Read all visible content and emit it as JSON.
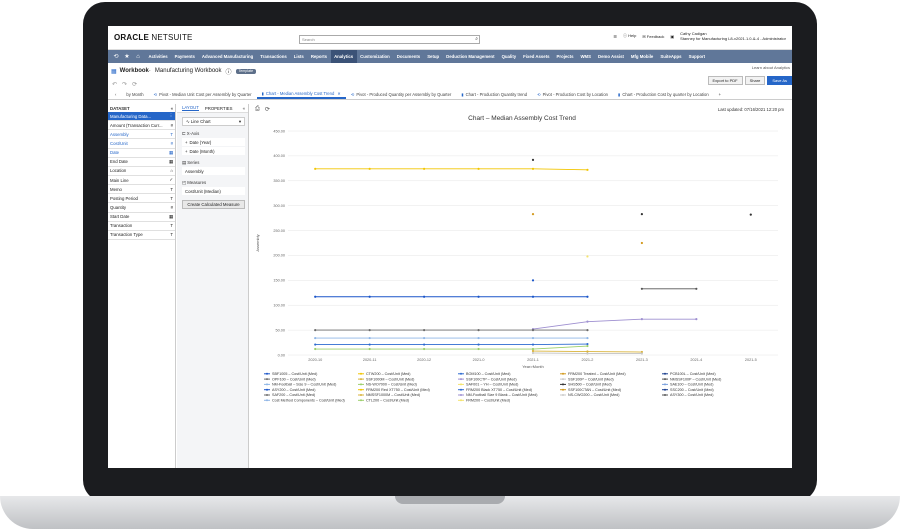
{
  "topbar": {
    "logo_bold": "ORACLE",
    "logo_light": " NETSUITE",
    "search_placeholder": "Search",
    "help": "Help",
    "feedback": "Feedback",
    "user_name": "Cathy Cadigan",
    "user_role": "Stanney for Manufacturing L8-v2021.1.0-&-4 - Administrator"
  },
  "nav": [
    "Activities",
    "Payments",
    "Advanced Manufacturing",
    "Transactions",
    "Lists",
    "Reports",
    "Analytics",
    "Customization",
    "Documents",
    "Setup",
    "Deduction Management",
    "Quality",
    "Fixed Assets",
    "Projects",
    "WMS",
    "Demo Assist",
    "Mfg Mobile",
    "SuiteApps",
    "Support"
  ],
  "nav_active": "Analytics",
  "workbook": {
    "label": "Workbook",
    "name": "Manufacturing Workbook",
    "tag": "Template",
    "learn": "Learn about Analytics",
    "export": "Export to PDF",
    "share": "Share",
    "save_as": "Save As"
  },
  "tabs": [
    {
      "label": "by Month",
      "active": false
    },
    {
      "label": "Pivot - Median Unit Cost per Assembly by Quarter",
      "active": false
    },
    {
      "label": "Chart - Median Assembly Cost Trend",
      "active": true
    },
    {
      "label": "Pivot - Produced Quantity per Assembly by Quarter",
      "active": false
    },
    {
      "label": "Chart - Production Quantity trend",
      "active": false
    },
    {
      "label": "Pivot - Production Cost by Location",
      "active": false
    },
    {
      "label": "Chart - Production Cost by quarter by Location",
      "active": false
    }
  ],
  "dataset": {
    "header": "DATASET",
    "fields": [
      {
        "label": "Manufacturing Data...",
        "type": "⋮",
        "state": "selected"
      },
      {
        "label": "Amount (Transaction Curr...",
        "type": "#",
        "state": ""
      },
      {
        "label": "Assembly",
        "type": "T",
        "state": "blue"
      },
      {
        "label": "Cost/Unit",
        "type": "#",
        "state": "blue"
      },
      {
        "label": "Date",
        "type": "▦",
        "state": "blue"
      },
      {
        "label": "End Date",
        "type": "▦",
        "state": ""
      },
      {
        "label": "Location",
        "type": "⌂",
        "state": ""
      },
      {
        "label": "Main Line",
        "type": "✓",
        "state": ""
      },
      {
        "label": "Memo",
        "type": "T",
        "state": ""
      },
      {
        "label": "Posting Period",
        "type": "T",
        "state": ""
      },
      {
        "label": "Quantity",
        "type": "#",
        "state": ""
      },
      {
        "label": "Start Date",
        "type": "▦",
        "state": ""
      },
      {
        "label": "Transaction",
        "type": "T",
        "state": ""
      },
      {
        "label": "Transaction Type",
        "type": "T",
        "state": ""
      }
    ]
  },
  "layout": {
    "tab_layout": "LAYOUT",
    "tab_properties": "PROPERTIES",
    "chart_type": "Line Chart",
    "xaxis_label": "X-Axis",
    "xaxis_items": [
      "Date (Year)",
      "Date (Month)"
    ],
    "series_label": "Series",
    "series_item": "Assembly",
    "measures_label": "Measures",
    "measures_item": "Cost/Unit (Median)",
    "create_btn": "Create Calculated Measure"
  },
  "last_updated": "Last updated: 07/16/2021 12:20 pm",
  "colors": {
    "nav": "#607799",
    "accent": "#2566c8"
  },
  "chart_data": {
    "type": "line",
    "title": "Chart – Median Assembly Cost Trend",
    "xlabel": "Year>Month",
    "ylabel": "Assembly",
    "categories": [
      "2020-10",
      "2020-11",
      "2020-12",
      "2021-0",
      "2021-1",
      "2021-2",
      "2021-3",
      "2021-4",
      "2021-5"
    ],
    "ylim": [
      0,
      450
    ],
    "yticks": [
      "0.00",
      "50.00",
      "100.00",
      "150.00",
      "200.00",
      "250.00",
      "300.00",
      "350.00",
      "400.00",
      "450.00"
    ],
    "series": [
      {
        "color": "#f2c500",
        "values": [
          374,
          374,
          374,
          374,
          374,
          372,
          null,
          null,
          null
        ]
      },
      {
        "color": "#1a55c9",
        "values": [
          117,
          117,
          117,
          117,
          117,
          117,
          null,
          null,
          null
        ]
      },
      {
        "color": "#333333",
        "values": [
          null,
          null,
          null,
          null,
          392,
          null,
          null,
          null,
          null
        ]
      },
      {
        "color": "#333333",
        "values": [
          null,
          null,
          null,
          null,
          null,
          null,
          283,
          null,
          282
        ]
      },
      {
        "color": "#d39a1e",
        "values": [
          null,
          null,
          null,
          null,
          283,
          null,
          225,
          null,
          null
        ]
      },
      {
        "color": "#f4e36b",
        "values": [
          null,
          null,
          null,
          null,
          null,
          198,
          null,
          null,
          null
        ]
      },
      {
        "color": "#1a55c9",
        "values": [
          null,
          null,
          null,
          null,
          150,
          null,
          null,
          null,
          null
        ]
      },
      {
        "color": "#555555",
        "values": [
          null,
          null,
          null,
          null,
          null,
          null,
          133,
          133,
          null
        ]
      },
      {
        "color": "#9e8fd0",
        "values": [
          null,
          null,
          null,
          null,
          52,
          67,
          72,
          72,
          null
        ]
      },
      {
        "color": "#6b6b6b",
        "values": [
          50,
          50,
          50,
          50,
          50,
          50,
          null,
          null,
          null
        ]
      },
      {
        "color": "#8fb6e6",
        "values": [
          34,
          34,
          34,
          34,
          34,
          34,
          null,
          null,
          null
        ]
      },
      {
        "color": "#2c6ad0",
        "values": [
          21,
          21,
          21,
          21,
          21,
          22,
          null,
          null,
          null
        ]
      },
      {
        "color": "#9ccf6b",
        "values": [
          12,
          12,
          12,
          12,
          12,
          18,
          null,
          null,
          null
        ]
      },
      {
        "color": "#d9b33a",
        "values": [
          null,
          null,
          null,
          null,
          8,
          7,
          6,
          null,
          null
        ]
      },
      {
        "color": "#c9c9c9",
        "values": [
          null,
          null,
          null,
          null,
          4,
          3,
          3,
          null,
          null
        ]
      }
    ],
    "legend": [
      [
        "SBF1005 – Cost/Unit (Med)",
        "CTW200 – Cost/Unit (Med)",
        "BOM100 – Cost/Unit (Med)",
        "FRM200 Treated – Cost/Unit (Med)",
        "PCB100L – Cost/Unit (Med)"
      ],
      [
        "OPF100 – Cost/Unit (Med)",
        "SSF1000M – Cost/Unit (Med)",
        "SSF100CTP – Cost/Unit (Med)",
        "SSF100P – Cost/Unit (Med)",
        "NMSSF100P – Cost/Unit (Med)"
      ],
      [
        "NM-Football – Size 9 – Cost/Unit (Med)",
        "NS-WO7000 – Cost/Unit (Med)",
        "SAF001 – YH – Cost/Unit (Med)",
        "SHS500 – Cost/Unit (Med)",
        "SAE100 – Cost/Unit (Med)"
      ],
      [
        "ASY200 – Cost/Unit (Med)",
        "FRM200 Red XT750 – Cost/Unit (Med)",
        "FRM200 Black XT750 – Cost/Unit (Med)",
        "SSF100CTAN – Cost/Unit (Med)",
        "SSC200 – Cost/Unit (Med)"
      ],
      [
        "SAF200 – Cost/Unit (Med)",
        "NMSSF1000M – Cost/Unit (Med)",
        "NM-Football Size 9 Blank – Cost/Unit (Med)",
        "NS-CWO200 – Cost/Unit (Med)",
        "ASY300 – Cost/Unit (Med)"
      ],
      [
        "Cost Method Components – Cost/Unit (Med)",
        "CTL200 – Cost/Unit (Med)",
        "FRM200 – Cost/Unit (Med)",
        "",
        ""
      ]
    ],
    "legend_colors": [
      "#1a55c9",
      "#f2c500",
      "#2c6ad0",
      "#d39a1e",
      "#1a3f8f",
      "#6b6b6b",
      "#d9b33a",
      "#9e8fd0",
      "#c9c9c9",
      "#555555",
      "#8fb6e6",
      "#9ccf6b",
      "#f4e36b",
      "#333333",
      "#7aa1dd"
    ]
  }
}
